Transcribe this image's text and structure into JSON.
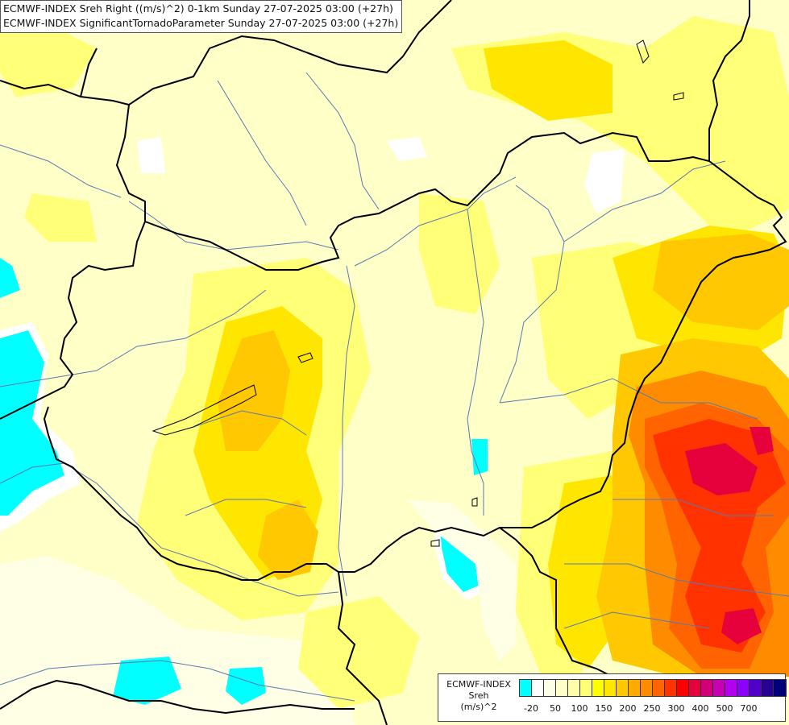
{
  "header": {
    "line1": "ECMWF-INDEX Sreh Right ((m/s)^2) 0-1km Sunday 27-07-2025 03:00 (+27h)",
    "line2": "ECMWF-INDEX SignificantTornadoParameter Sunday 27-07-2025 03:00 (+27h)"
  },
  "legend": {
    "line1": "ECMWF-INDEX",
    "line2": "Sreh",
    "line3": "(m/s)^2",
    "colors": [
      "#00ffff",
      "#ffffff",
      "#ffffe6",
      "#ffffc8",
      "#ffffaa",
      "#ffff78",
      "#ffff00",
      "#ffe600",
      "#ffc800",
      "#ffaa00",
      "#ff8c00",
      "#ff6400",
      "#ff3200",
      "#ff0000",
      "#e6003c",
      "#d20078",
      "#c800b4",
      "#b400f0",
      "#8c00ff",
      "#5000c8",
      "#280096",
      "#000078"
    ],
    "ticks": [
      "-20",
      "50",
      "100",
      "150",
      "200",
      "250",
      "300",
      "400",
      "500",
      "700"
    ]
  },
  "colors": {
    "background": "#ffffc8",
    "borders": "#000000",
    "rivers": "#5a78b4"
  }
}
